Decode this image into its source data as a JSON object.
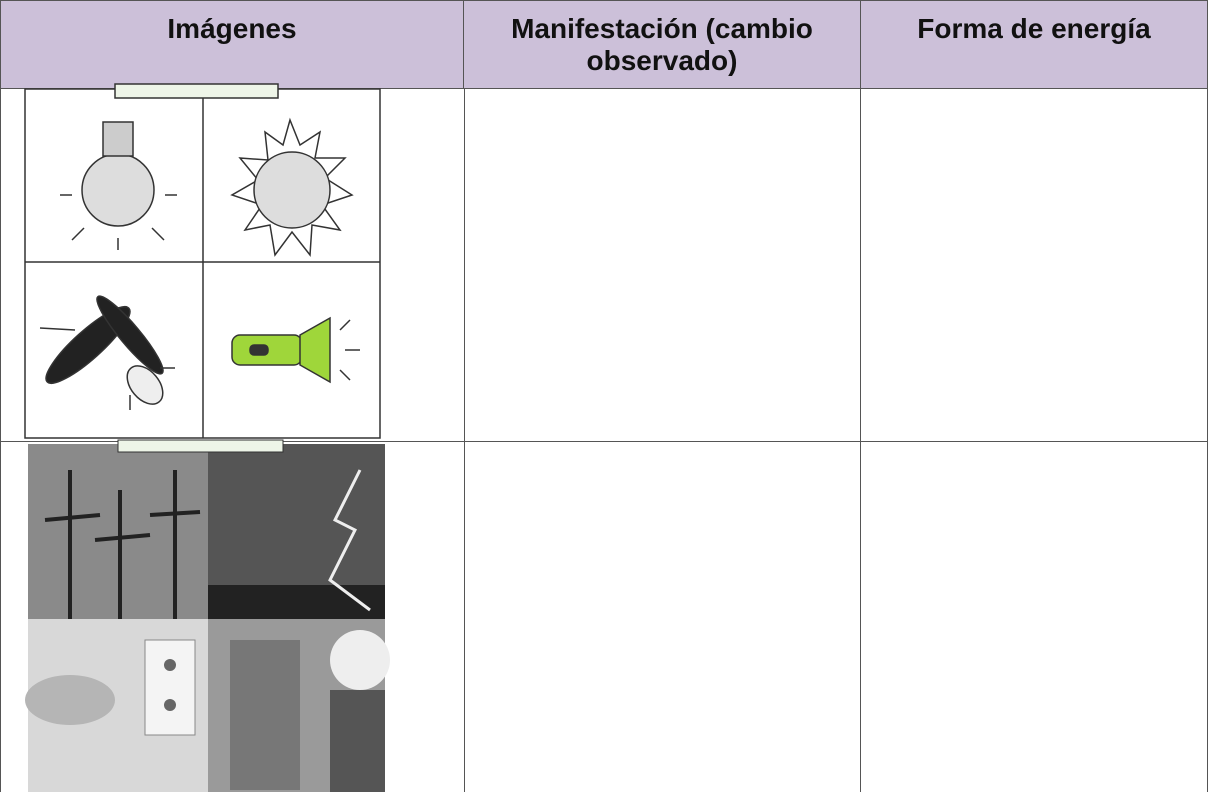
{
  "table": {
    "headers": [
      "Imágenes",
      "Manifestación (cambio observado)",
      "Forma de energía"
    ]
  }
}
